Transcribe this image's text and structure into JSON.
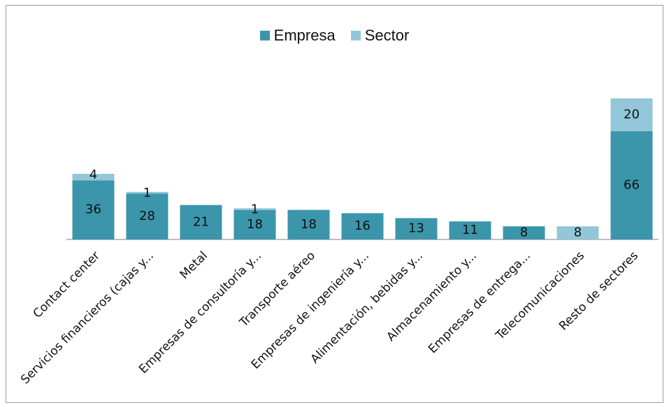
{
  "chart_data": {
    "type": "bar",
    "stacked": true,
    "categories": [
      "Contact center",
      "Servicios financieros (cajas y...",
      "Metal",
      "Empresas de consultoría y...",
      "Transporte aéreo",
      "Empresas de ingeniería y...",
      "Alimentación, bebidas y...",
      "Almacenamiento y...",
      "Empresas de entrega...",
      "Telecomunicaciones",
      "Resto de sectores"
    ],
    "series": [
      {
        "name": "Empresa",
        "color": "#3b95ab",
        "values": [
          36,
          28,
          21,
          18,
          18,
          16,
          13,
          11,
          8,
          0,
          66
        ],
        "labels": [
          "36",
          "28",
          "21",
          "18",
          "18",
          "16",
          "13",
          "11",
          "8",
          "",
          "66"
        ]
      },
      {
        "name": "Sector",
        "color": "#93c6d8",
        "values": [
          4,
          1,
          0,
          1,
          0,
          0,
          0,
          0,
          0,
          8,
          20
        ],
        "labels": [
          "4",
          "1",
          "",
          "1",
          "",
          "",
          "",
          "",
          "",
          "8",
          "20"
        ]
      }
    ],
    "legend_position": "top",
    "grid": false
  }
}
